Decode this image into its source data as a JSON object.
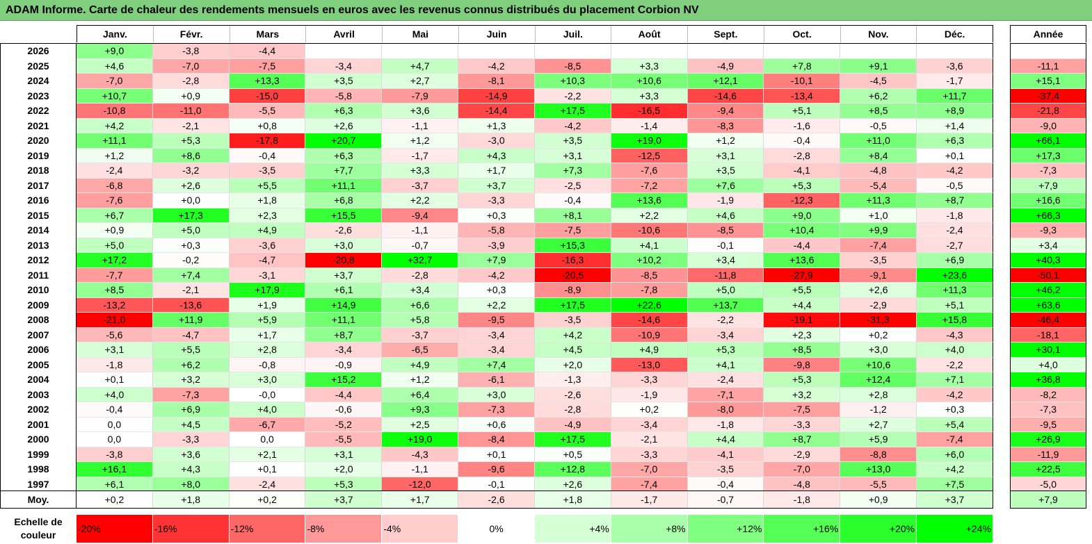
{
  "title": "ADAM Informe. Carte de chaleur des rendements mensuels en euros avec les revenus connus distribués du placement Corbion NV",
  "chart_data": {
    "type": "heatmap",
    "title": "ADAM Informe. Carte de chaleur des rendements mensuels en euros avec les revenus connus distribués du placement Corbion NV",
    "columns": [
      "Janv.",
      "Févr.",
      "Mars",
      "Avril",
      "Mai",
      "Juin",
      "Juil.",
      "Août",
      "Sept.",
      "Oct.",
      "Nov.",
      "Déc."
    ],
    "year_header": "Année",
    "rows": [
      {
        "year": "2026",
        "values": [
          "+9,0",
          "-3,8",
          "-4,4",
          "",
          "",
          "",
          "",
          "",
          "",
          "",
          "",
          ""
        ],
        "annual": ""
      },
      {
        "year": "2025",
        "values": [
          "+4,6",
          "-7,0",
          "-7,5",
          "-3,4",
          "+4,7",
          "-4,2",
          "-8,5",
          "+3,3",
          "-4,9",
          "+7,8",
          "+9,1",
          "-3,6"
        ],
        "annual": "-11,1"
      },
      {
        "year": "2024",
        "values": [
          "-7,0",
          "-2,8",
          "+13,3",
          "+3,5",
          "+2,7",
          "-8,1",
          "+10,3",
          "+10,6",
          "+12,1",
          "-10,1",
          "-4,5",
          "-1,7"
        ],
        "annual": "+15,1"
      },
      {
        "year": "2023",
        "values": [
          "+10,7",
          "+0,9",
          "-15,0",
          "-5,8",
          "-7,9",
          "-14,9",
          "-2,2",
          "+3,3",
          "-14,6",
          "-13,4",
          "+6,2",
          "+11,7"
        ],
        "annual": "-37,4"
      },
      {
        "year": "2022",
        "values": [
          "-10,8",
          "-11,0",
          "-5,5",
          "+6,3",
          "+3,6",
          "-14,4",
          "+17,5",
          "-16,5",
          "-9,4",
          "+5,1",
          "+8,5",
          "+8,9"
        ],
        "annual": "-21,8"
      },
      {
        "year": "2021",
        "values": [
          "+4,2",
          "-2,1",
          "+0,8",
          "+2,6",
          "-1,1",
          "+1,3",
          "-4,2",
          "-1,4",
          "-8,3",
          "-1,6",
          "-0,5",
          "+1,4"
        ],
        "annual": "-9,0"
      },
      {
        "year": "2020",
        "values": [
          "+11,1",
          "+5,3",
          "-17,8",
          "+20,7",
          "+1,2",
          "-3,0",
          "+3,5",
          "+19,0",
          "+1,2",
          "-0,4",
          "+11,0",
          "+6,3"
        ],
        "annual": "+66,1"
      },
      {
        "year": "2019",
        "values": [
          "+1,2",
          "+8,6",
          "-0,4",
          "+6,3",
          "-1,7",
          "+4,3",
          "+3,1",
          "-12,5",
          "+3,1",
          "-2,8",
          "+8,4",
          "+0,1"
        ],
        "annual": "+17,3"
      },
      {
        "year": "2018",
        "values": [
          "-2,4",
          "-3,2",
          "-3,5",
          "+7,7",
          "+3,3",
          "+1,7",
          "+7,3",
          "-7,6",
          "+3,5",
          "-4,1",
          "-4,8",
          "-4,2"
        ],
        "annual": "-7,3"
      },
      {
        "year": "2017",
        "values": [
          "-6,8",
          "+2,6",
          "+5,5",
          "+11,1",
          "-3,7",
          "+3,7",
          "-2,5",
          "-7,2",
          "+7,6",
          "+5,3",
          "-5,4",
          "-0,5"
        ],
        "annual": "+7,9"
      },
      {
        "year": "2016",
        "values": [
          "-7,6",
          "+0,0",
          "+1,8",
          "+6,8",
          "+2,2",
          "-3,3",
          "-0,4",
          "+13,6",
          "-1,9",
          "-12,3",
          "+11,3",
          "+8,7"
        ],
        "annual": "+16,6"
      },
      {
        "year": "2015",
        "values": [
          "+6,7",
          "+17,3",
          "+2,3",
          "+15,5",
          "-9,4",
          "+0,3",
          "+8,1",
          "+2,2",
          "+4,6",
          "+9,0",
          "+1,0",
          "-1,8"
        ],
        "annual": "+66,3"
      },
      {
        "year": "2014",
        "values": [
          "+0,9",
          "+5,0",
          "+4,9",
          "-2,6",
          "-1,1",
          "-5,8",
          "-7,5",
          "-10,6",
          "-8,5",
          "+10,4",
          "+9,9",
          "-2,4"
        ],
        "annual": "-9,3"
      },
      {
        "year": "2013",
        "values": [
          "+5,0",
          "+0,3",
          "-3,6",
          "+3,0",
          "-0,7",
          "-3,9",
          "+15,3",
          "+4,1",
          "-0,1",
          "-4,4",
          "-7,4",
          "-2,7"
        ],
        "annual": "+3,4"
      },
      {
        "year": "2012",
        "values": [
          "+17,2",
          "-0,2",
          "-4,7",
          "-20,8",
          "+32,7",
          "+7,9",
          "-16,3",
          "+10,2",
          "+3,4",
          "+13,6",
          "-3,5",
          "+6,9"
        ],
        "annual": "+40,3"
      },
      {
        "year": "2011",
        "values": [
          "-7,7",
          "+7,4",
          "-3,1",
          "+3,7",
          "-2,8",
          "-4,2",
          "-20,5",
          "-8,5",
          "-11,8",
          "-27,9",
          "-9,1",
          "+23,6"
        ],
        "annual": "-50,1"
      },
      {
        "year": "2010",
        "values": [
          "+8,5",
          "-2,1",
          "+17,9",
          "+6,1",
          "+3,4",
          "+0,3",
          "-8,9",
          "-7,8",
          "+5,0",
          "+5,5",
          "+2,6",
          "+11,3"
        ],
        "annual": "+46,2"
      },
      {
        "year": "2009",
        "values": [
          "-13,2",
          "-13,6",
          "+1,9",
          "+14,9",
          "+6,6",
          "+2,2",
          "+17,5",
          "+22,6",
          "+13,7",
          "+4,4",
          "-2,9",
          "+5,1"
        ],
        "annual": "+63,6"
      },
      {
        "year": "2008",
        "values": [
          "-21,0",
          "+11,9",
          "+5,9",
          "+11,1",
          "+5,8",
          "-9,5",
          "-3,5",
          "-14,6",
          "-2,2",
          "-19,1",
          "-31,3",
          "+15,8"
        ],
        "annual": "-46,4"
      },
      {
        "year": "2007",
        "values": [
          "-5,6",
          "-4,7",
          "+1,7",
          "+8,7",
          "-3,7",
          "-3,4",
          "+4,2",
          "-10,9",
          "-3,4",
          "+2,3",
          "+0,2",
          "-4,3"
        ],
        "annual": "-18,1"
      },
      {
        "year": "2006",
        "values": [
          "+3,1",
          "+5,5",
          "+2,8",
          "-3,4",
          "-6,5",
          "-3,4",
          "+4,5",
          "+4,9",
          "+5,3",
          "+8,5",
          "+3,0",
          "+4,0"
        ],
        "annual": "+30,1"
      },
      {
        "year": "2005",
        "values": [
          "-1,8",
          "+6,2",
          "-0,8",
          "-0,9",
          "+4,9",
          "+7,4",
          "+2,0",
          "-13,0",
          "+4,1",
          "-9,8",
          "+10,6",
          "-2,2"
        ],
        "annual": "+4,0"
      },
      {
        "year": "2004",
        "values": [
          "+0,1",
          "+3,2",
          "+3,0",
          "+15,2",
          "+1,2",
          "-6,1",
          "-1,3",
          "-3,3",
          "-2,4",
          "+5,3",
          "+12,4",
          "+7,1"
        ],
        "annual": "+36,8"
      },
      {
        "year": "2003",
        "values": [
          "+4,0",
          "-7,3",
          "-0,0",
          "-4,4",
          "+6,4",
          "+3,0",
          "-2,6",
          "-1,9",
          "-7,1",
          "+3,2",
          "+2,8",
          "-4,2"
        ],
        "annual": "-8,2"
      },
      {
        "year": "2002",
        "values": [
          "-0,4",
          "+6,9",
          "+4,0",
          "-0,6",
          "+9,3",
          "-7,3",
          "-2,8",
          "+0,2",
          "-8,0",
          "-7,5",
          "-1,2",
          "+0,3"
        ],
        "annual": "-7,3"
      },
      {
        "year": "2001",
        "values": [
          "0,0",
          "+4,5",
          "-6,7",
          "-5,2",
          "+2,5",
          "+0,6",
          "-4,9",
          "-3,4",
          "-1,8",
          "-3,3",
          "+2,7",
          "+5,4"
        ],
        "annual": "-9,5"
      },
      {
        "year": "2000",
        "values": [
          "0,0",
          "-3,3",
          "0,0",
          "-5,5",
          "+19,0",
          "-8,4",
          "+17,5",
          "-2,1",
          "+4,4",
          "+8,7",
          "+5,9",
          "-7,4"
        ],
        "annual": "+26,9"
      },
      {
        "year": "1999",
        "values": [
          "-3,8",
          "+3,6",
          "+2,1",
          "+3,1",
          "-4,3",
          "+0,1",
          "+0,5",
          "-3,3",
          "-4,1",
          "-2,9",
          "-8,8",
          "+6,0"
        ],
        "annual": "-11,9"
      },
      {
        "year": "1998",
        "values": [
          "+16,1",
          "+4,3",
          "+0,1",
          "+2,0",
          "-1,1",
          "-9,6",
          "+12,8",
          "-7,0",
          "-3,5",
          "-7,0",
          "+13,0",
          "+4,2"
        ],
        "annual": "+22,5"
      },
      {
        "year": "1997",
        "values": [
          "+6,1",
          "+8,0",
          "-2,4",
          "+5,3",
          "-12,0",
          "-0,1",
          "+2,6",
          "-7,4",
          "-0,4",
          "-4,8",
          "-5,5",
          "+7,5"
        ],
        "annual": "-5,0"
      }
    ],
    "average": {
      "label": "Moy.",
      "values": [
        "+0,2",
        "+1,8",
        "+0,2",
        "+3,7",
        "+1,7",
        "-2,6",
        "+1,8",
        "-1,7",
        "-0,7",
        "-1,8",
        "+0,9",
        "+3,7"
      ],
      "annual": "+7,9"
    },
    "legend": {
      "label_line1": "Echelle de",
      "label_line2": "couleur",
      "items": [
        {
          "label": "-20%",
          "value": -20
        },
        {
          "label": "-16%",
          "value": -16
        },
        {
          "label": "-12%",
          "value": -12
        },
        {
          "label": "-8%",
          "value": -8
        },
        {
          "label": "-4%",
          "value": -4
        },
        {
          "label": "0%",
          "value": 0
        },
        {
          "label": "+4%",
          "value": 4
        },
        {
          "label": "+8%",
          "value": 8
        },
        {
          "label": "+12%",
          "value": 12
        },
        {
          "label": "+16%",
          "value": 16
        },
        {
          "label": "+20%",
          "value": 20
        },
        {
          "label": "+24%",
          "value": 24
        }
      ]
    },
    "colors": {
      "negative": "#ff0000",
      "neutral": "#ffffff",
      "positive": "#00ff00"
    }
  }
}
